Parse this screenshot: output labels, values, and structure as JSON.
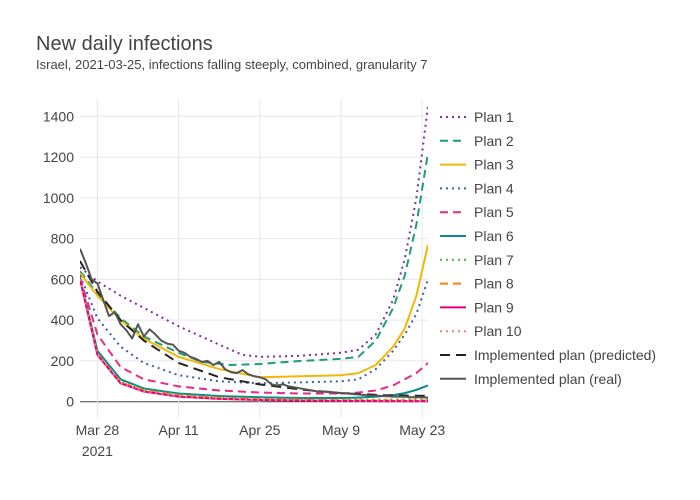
{
  "chart_data": {
    "type": "line",
    "title": "New daily infections",
    "subtitle": "Israel, 2021-03-25, infections falling steeply, combined, granularity 7",
    "xlabel": "",
    "ylabel": "",
    "x_range": [
      "2021-03-25",
      "2021-05-24"
    ],
    "ylim": [
      -80,
      1480
    ],
    "y_ticks": [
      0,
      200,
      400,
      600,
      800,
      1000,
      1200,
      1400
    ],
    "x_ticks": [
      {
        "date": "2021-03-28",
        "label": "Mar 28",
        "sublabel": "2021"
      },
      {
        "date": "2021-04-11",
        "label": "Apr 11",
        "sublabel": ""
      },
      {
        "date": "2021-04-25",
        "label": "Apr 25",
        "sublabel": ""
      },
      {
        "date": "2021-05-09",
        "label": "May 9",
        "sublabel": ""
      },
      {
        "date": "2021-05-23",
        "label": "May 23",
        "sublabel": ""
      }
    ],
    "grid": true,
    "legend_position": "right",
    "series": [
      {
        "name": "Plan 1",
        "color": "#7b3294",
        "dash": "dot",
        "width": 2,
        "points": [
          [
            "2021-03-25",
            660
          ],
          [
            "2021-03-28",
            590
          ],
          [
            "2021-04-01",
            520
          ],
          [
            "2021-04-05",
            460
          ],
          [
            "2021-04-11",
            370
          ],
          [
            "2021-04-18",
            280
          ],
          [
            "2021-04-22",
            230
          ],
          [
            "2021-04-25",
            220
          ],
          [
            "2021-05-02",
            225
          ],
          [
            "2021-05-09",
            240
          ],
          [
            "2021-05-12",
            255
          ],
          [
            "2021-05-15",
            330
          ],
          [
            "2021-05-18",
            500
          ],
          [
            "2021-05-20",
            700
          ],
          [
            "2021-05-22",
            1000
          ],
          [
            "2021-05-24",
            1450
          ]
        ]
      },
      {
        "name": "Plan 2",
        "color": "#1b9e77",
        "dash": "dash",
        "width": 2,
        "points": [
          [
            "2021-03-25",
            640
          ],
          [
            "2021-03-28",
            530
          ],
          [
            "2021-04-01",
            410
          ],
          [
            "2021-04-05",
            320
          ],
          [
            "2021-04-11",
            240
          ],
          [
            "2021-04-15",
            195
          ],
          [
            "2021-04-20",
            180
          ],
          [
            "2021-04-25",
            185
          ],
          [
            "2021-05-02",
            200
          ],
          [
            "2021-05-09",
            210
          ],
          [
            "2021-05-12",
            220
          ],
          [
            "2021-05-15",
            300
          ],
          [
            "2021-05-18",
            460
          ],
          [
            "2021-05-20",
            620
          ],
          [
            "2021-05-22",
            870
          ],
          [
            "2021-05-24",
            1220
          ]
        ]
      },
      {
        "name": "Plan 3",
        "color": "#f2b705",
        "dash": "solid",
        "width": 2,
        "points": [
          [
            "2021-03-25",
            630
          ],
          [
            "2021-03-28",
            520
          ],
          [
            "2021-04-01",
            400
          ],
          [
            "2021-04-05",
            310
          ],
          [
            "2021-04-11",
            220
          ],
          [
            "2021-04-18",
            160
          ],
          [
            "2021-04-25",
            120
          ],
          [
            "2021-05-02",
            125
          ],
          [
            "2021-05-09",
            130
          ],
          [
            "2021-05-12",
            140
          ],
          [
            "2021-05-15",
            180
          ],
          [
            "2021-05-18",
            270
          ],
          [
            "2021-05-20",
            360
          ],
          [
            "2021-05-22",
            520
          ],
          [
            "2021-05-24",
            770
          ]
        ]
      },
      {
        "name": "Plan 4",
        "color": "#3a5eaa",
        "dash": "dot",
        "width": 2,
        "points": [
          [
            "2021-03-25",
            620
          ],
          [
            "2021-03-28",
            410
          ],
          [
            "2021-04-01",
            270
          ],
          [
            "2021-04-05",
            190
          ],
          [
            "2021-04-11",
            130
          ],
          [
            "2021-04-18",
            100
          ],
          [
            "2021-04-25",
            90
          ],
          [
            "2021-05-02",
            95
          ],
          [
            "2021-05-09",
            100
          ],
          [
            "2021-05-12",
            110
          ],
          [
            "2021-05-15",
            160
          ],
          [
            "2021-05-18",
            250
          ],
          [
            "2021-05-20",
            330
          ],
          [
            "2021-05-22",
            430
          ],
          [
            "2021-05-24",
            600
          ]
        ]
      },
      {
        "name": "Plan 5",
        "color": "#e7298a",
        "dash": "dash",
        "width": 2,
        "points": [
          [
            "2021-03-25",
            610
          ],
          [
            "2021-03-28",
            330
          ],
          [
            "2021-04-01",
            170
          ],
          [
            "2021-04-05",
            110
          ],
          [
            "2021-04-11",
            75
          ],
          [
            "2021-04-18",
            55
          ],
          [
            "2021-04-25",
            45
          ],
          [
            "2021-05-02",
            40
          ],
          [
            "2021-05-09",
            40
          ],
          [
            "2021-05-12",
            45
          ],
          [
            "2021-05-15",
            55
          ],
          [
            "2021-05-18",
            80
          ],
          [
            "2021-05-20",
            110
          ],
          [
            "2021-05-22",
            140
          ],
          [
            "2021-05-24",
            190
          ]
        ]
      },
      {
        "name": "Plan 6",
        "color": "#0e8a8a",
        "dash": "solid",
        "width": 2,
        "points": [
          [
            "2021-03-25",
            605
          ],
          [
            "2021-03-28",
            250
          ],
          [
            "2021-04-01",
            110
          ],
          [
            "2021-04-05",
            65
          ],
          [
            "2021-04-11",
            40
          ],
          [
            "2021-04-18",
            28
          ],
          [
            "2021-04-25",
            22
          ],
          [
            "2021-05-02",
            18
          ],
          [
            "2021-05-09",
            18
          ],
          [
            "2021-05-12",
            20
          ],
          [
            "2021-05-15",
            25
          ],
          [
            "2021-05-18",
            32
          ],
          [
            "2021-05-20",
            42
          ],
          [
            "2021-05-22",
            58
          ],
          [
            "2021-05-24",
            80
          ]
        ]
      },
      {
        "name": "Plan 7",
        "color": "#4daf4a",
        "dash": "dot",
        "width": 2,
        "points": [
          [
            "2021-03-25",
            600
          ],
          [
            "2021-03-28",
            240
          ],
          [
            "2021-04-01",
            100
          ],
          [
            "2021-04-05",
            60
          ],
          [
            "2021-04-11",
            35
          ],
          [
            "2021-04-18",
            22
          ],
          [
            "2021-04-25",
            15
          ],
          [
            "2021-05-02",
            12
          ],
          [
            "2021-05-09",
            10
          ],
          [
            "2021-05-16",
            10
          ],
          [
            "2021-05-24",
            12
          ]
        ]
      },
      {
        "name": "Plan 8",
        "color": "#ff7f0e",
        "dash": "dash",
        "width": 2,
        "points": [
          [
            "2021-03-25",
            600
          ],
          [
            "2021-03-28",
            235
          ],
          [
            "2021-04-01",
            95
          ],
          [
            "2021-04-05",
            55
          ],
          [
            "2021-04-11",
            30
          ],
          [
            "2021-04-18",
            18
          ],
          [
            "2021-04-25",
            12
          ],
          [
            "2021-05-02",
            9
          ],
          [
            "2021-05-09",
            7
          ],
          [
            "2021-05-16",
            6
          ],
          [
            "2021-05-24",
            6
          ]
        ]
      },
      {
        "name": "Plan 9",
        "color": "#e6007e",
        "dash": "solid",
        "width": 2,
        "points": [
          [
            "2021-03-25",
            600
          ],
          [
            "2021-03-28",
            230
          ],
          [
            "2021-04-01",
            90
          ],
          [
            "2021-04-05",
            50
          ],
          [
            "2021-04-11",
            25
          ],
          [
            "2021-04-18",
            14
          ],
          [
            "2021-04-25",
            8
          ],
          [
            "2021-05-02",
            5
          ],
          [
            "2021-05-09",
            4
          ],
          [
            "2021-05-16",
            3
          ],
          [
            "2021-05-24",
            3
          ]
        ]
      },
      {
        "name": "Plan 10",
        "color": "#f08080",
        "dash": "dot",
        "width": 2,
        "points": [
          [
            "2021-03-25",
            600
          ],
          [
            "2021-03-28",
            232
          ],
          [
            "2021-04-01",
            92
          ],
          [
            "2021-04-05",
            52
          ],
          [
            "2021-04-11",
            27
          ],
          [
            "2021-04-18",
            15
          ],
          [
            "2021-04-25",
            9
          ],
          [
            "2021-05-02",
            6
          ],
          [
            "2021-05-09",
            5
          ],
          [
            "2021-05-16",
            4
          ],
          [
            "2021-05-24",
            4
          ]
        ]
      },
      {
        "name": "Implemented plan (predicted)",
        "color": "#222222",
        "dash": "longdash",
        "width": 2,
        "points": [
          [
            "2021-03-25",
            690
          ],
          [
            "2021-03-28",
            540
          ],
          [
            "2021-04-01",
            400
          ],
          [
            "2021-04-05",
            300
          ],
          [
            "2021-04-11",
            190
          ],
          [
            "2021-04-18",
            120
          ],
          [
            "2021-04-25",
            85
          ],
          [
            "2021-05-02",
            60
          ],
          [
            "2021-05-09",
            42
          ],
          [
            "2021-05-16",
            32
          ],
          [
            "2021-05-24",
            28
          ]
        ]
      },
      {
        "name": "Implemented plan (real)",
        "color": "#555555",
        "dash": "solid",
        "width": 2,
        "points": [
          [
            "2021-03-25",
            750
          ],
          [
            "2021-03-26",
            680
          ],
          [
            "2021-03-27",
            600
          ],
          [
            "2021-03-28",
            580
          ],
          [
            "2021-03-29",
            500
          ],
          [
            "2021-03-30",
            420
          ],
          [
            "2021-03-31",
            440
          ],
          [
            "2021-04-01",
            380
          ],
          [
            "2021-04-02",
            350
          ],
          [
            "2021-04-03",
            310
          ],
          [
            "2021-04-04",
            380
          ],
          [
            "2021-04-05",
            320
          ],
          [
            "2021-04-06",
            355
          ],
          [
            "2021-04-07",
            330
          ],
          [
            "2021-04-08",
            300
          ],
          [
            "2021-04-09",
            285
          ],
          [
            "2021-04-10",
            280
          ],
          [
            "2021-04-11",
            250
          ],
          [
            "2021-04-12",
            240
          ],
          [
            "2021-04-13",
            220
          ],
          [
            "2021-04-14",
            210
          ],
          [
            "2021-04-15",
            195
          ],
          [
            "2021-04-16",
            200
          ],
          [
            "2021-04-17",
            180
          ],
          [
            "2021-04-18",
            195
          ],
          [
            "2021-04-19",
            160
          ],
          [
            "2021-04-20",
            145
          ],
          [
            "2021-04-21",
            140
          ],
          [
            "2021-04-22",
            155
          ],
          [
            "2021-04-23",
            135
          ],
          [
            "2021-04-24",
            125
          ],
          [
            "2021-04-25",
            120
          ],
          [
            "2021-04-26",
            110
          ],
          [
            "2021-04-27",
            85
          ],
          [
            "2021-04-28",
            80
          ],
          [
            "2021-04-29",
            85
          ],
          [
            "2021-04-30",
            75
          ],
          [
            "2021-05-01",
            70
          ],
          [
            "2021-05-02",
            65
          ],
          [
            "2021-05-03",
            60
          ],
          [
            "2021-05-04",
            55
          ],
          [
            "2021-05-05",
            50
          ],
          [
            "2021-05-06",
            50
          ],
          [
            "2021-05-07",
            48
          ],
          [
            "2021-05-08",
            45
          ],
          [
            "2021-05-09",
            42
          ],
          [
            "2021-05-10",
            40
          ],
          [
            "2021-05-11",
            38
          ],
          [
            "2021-05-12",
            35
          ],
          [
            "2021-05-13",
            33
          ],
          [
            "2021-05-14",
            30
          ],
          [
            "2021-05-15",
            30
          ],
          [
            "2021-05-16",
            28
          ],
          [
            "2021-05-17",
            27
          ],
          [
            "2021-05-18",
            25
          ],
          [
            "2021-05-19",
            25
          ],
          [
            "2021-05-20",
            24
          ],
          [
            "2021-05-21",
            22
          ],
          [
            "2021-05-22",
            22
          ],
          [
            "2021-05-23",
            22
          ],
          [
            "2021-05-24",
            20
          ]
        ]
      }
    ]
  }
}
